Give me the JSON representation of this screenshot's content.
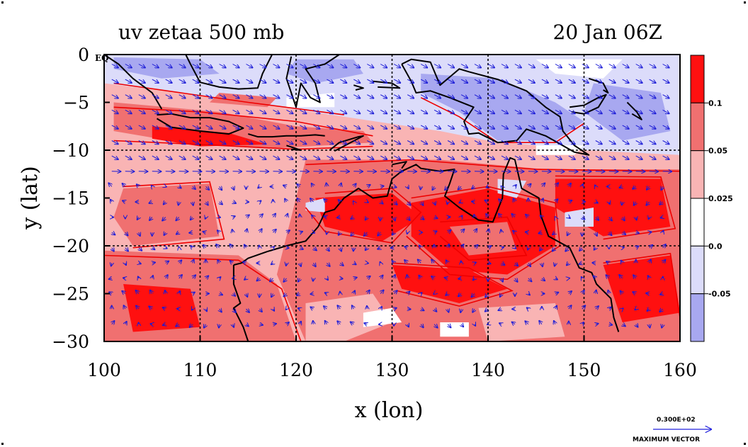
{
  "title_left": "uv zetaa 500 mb",
  "title_right": "20 Jan 06Z",
  "xlabel": "x (lon)",
  "ylabel": "y (lat)",
  "eq_label": "EQ",
  "vector_key": {
    "value": "0.300E+02",
    "label": "MAXIMUM VECTOR",
    "color": "#2222dd"
  },
  "colors": {
    "strong_red": "#ff1010",
    "red": "#f07070",
    "pink": "#f9b4b4",
    "white": "#ffffff",
    "light_blue": "#dcdcfa",
    "blue": "#a8a8f0",
    "contour_red": "#ee0000",
    "coast": "#000000",
    "vector": "#1a1ad6"
  },
  "chart_data": {
    "type": "map",
    "variable": "zetaa",
    "level": "500 mb",
    "time": "20 Jan 06Z",
    "xlim": [
      100,
      160
    ],
    "ylim": [
      -30,
      0
    ],
    "x_ticks": [
      {
        "v": 100,
        "label": "100"
      },
      {
        "v": 110,
        "label": "110"
      },
      {
        "v": 120,
        "label": "120"
      },
      {
        "v": 130,
        "label": "130"
      },
      {
        "v": 140,
        "label": "140"
      },
      {
        "v": 150,
        "label": "150"
      },
      {
        "v": 160,
        "label": "160"
      }
    ],
    "y_ticks": [
      {
        "v": 0,
        "label": "0"
      },
      {
        "v": -5,
        "label": "−5"
      },
      {
        "v": -10,
        "label": "−10"
      },
      {
        "v": -15,
        "label": "−15"
      },
      {
        "v": -20,
        "label": "−20"
      },
      {
        "v": -25,
        "label": "−25"
      },
      {
        "v": -30,
        "label": "−30"
      }
    ],
    "gridlines": [
      110,
      120,
      130,
      140,
      150
    ],
    "gridlines_lat": [
      -10,
      -20
    ],
    "colorbar": {
      "placement": "right",
      "levels": [
        {
          "label": "0.1"
        },
        {
          "label": "0.05"
        },
        {
          "label": "0.025"
        },
        {
          "label": "0.0"
        },
        {
          "label": "-0.05"
        }
      ],
      "fills": [
        "#ff1010",
        "#f07070",
        "#f9b4b4",
        "#ffffff",
        "#dcdcfa",
        "#a8a8f0"
      ]
    }
  }
}
